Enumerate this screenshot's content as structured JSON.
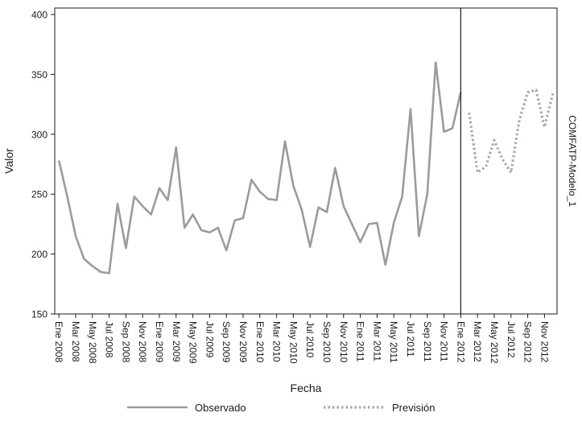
{
  "chart_data": {
    "type": "line",
    "title": "",
    "xlabel": "Fecha",
    "ylabel": "Valor",
    "right_axis_label": "COMFATP-Modelo_1",
    "ylim": [
      150,
      400
    ],
    "yticks": [
      150,
      200,
      250,
      300,
      350,
      400
    ],
    "n_slots": 60,
    "x_tick_step": 2,
    "x_tick_labels": [
      "Ene 2008",
      "Mar 2008",
      "May 2008",
      "Jul 2008",
      "Sep 2008",
      "Nov 2008",
      "Ene 2009",
      "Mar 2009",
      "May 2009",
      "Jul 2009",
      "Sep 2009",
      "Nov 2009",
      "Ene 2010",
      "Mar 2010",
      "May 2010",
      "Jul 2010",
      "Sep 2010",
      "Nov 2010",
      "Ene 2011",
      "Mar 2011",
      "May 2011",
      "Jul 2011",
      "Sep 2011",
      "Nov 2011",
      "Ene 2012",
      "Mar 2012",
      "May 2012",
      "Jul 2012",
      "Sep 2012",
      "Nov 2012"
    ],
    "forecast_divider_index": 48,
    "series": [
      {
        "name": "Observado",
        "style": "solid",
        "start_index": 0,
        "values": [
          278,
          248,
          215,
          196,
          190,
          185,
          184,
          242,
          205,
          248,
          240,
          233,
          255,
          245,
          289,
          222,
          233,
          220,
          218,
          222,
          203,
          228,
          230,
          262,
          252,
          246,
          245,
          294,
          257,
          237,
          206,
          239,
          235,
          272,
          240,
          225,
          210,
          225,
          226,
          191,
          226,
          248,
          321,
          215,
          250,
          360,
          302,
          305,
          335
        ]
      },
      {
        "name": "Previsión",
        "style": "dotted",
        "start_index": 49,
        "values": [
          318,
          268,
          273,
          295,
          279,
          268,
          312,
          335,
          337,
          306,
          334
        ]
      }
    ],
    "legend": {
      "position": "bottom",
      "entries": [
        "Observado",
        "Previsión"
      ]
    },
    "grid": "off",
    "colors": {
      "observed_line": "#9b9b9b",
      "forecast_line": "#a8a8a8",
      "axis": "#1a1a1a",
      "text": "#1a1a1a",
      "background": "#ffffff"
    }
  }
}
